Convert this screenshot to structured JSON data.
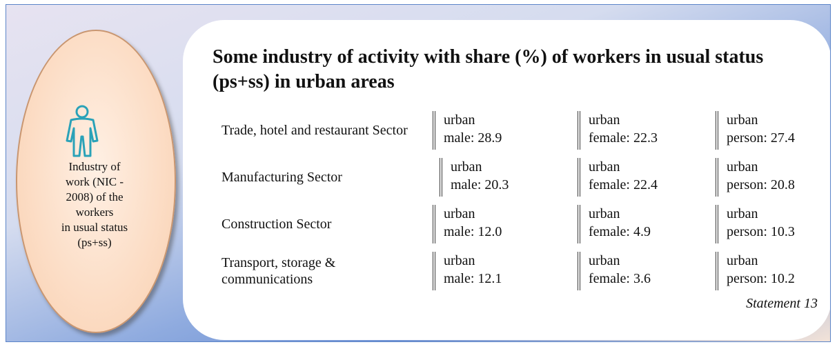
{
  "panel": {
    "lines": [
      "Industry of",
      "work (NIC -",
      "2008) of the",
      "workers",
      "in usual status",
      "(ps+ss)"
    ]
  },
  "title": "Some industry of activity with share (%) of workers in usual status (ps+ss) in urban areas",
  "table": {
    "rows": [
      {
        "label": "Trade, hotel and restaurant Sector",
        "cells": [
          [
            "urban",
            "male: 28.9"
          ],
          [
            "urban",
            "female: 22.3"
          ],
          [
            "urban",
            "person: 27.4"
          ]
        ]
      },
      {
        "label": "Manufacturing Sector",
        "cells": [
          [
            "urban",
            "male: 20.3"
          ],
          [
            "urban",
            "female: 22.4"
          ],
          [
            "urban",
            "person: 20.8"
          ]
        ]
      },
      {
        "label": "Construction Sector",
        "cells": [
          [
            "urban",
            "male: 12.0"
          ],
          [
            "urban",
            "female: 4.9"
          ],
          [
            "urban",
            "person: 10.3"
          ]
        ]
      },
      {
        "label": "Transport, storage & communications",
        "cells": [
          [
            "urban",
            "male: 12.1"
          ],
          [
            "urban",
            "female: 3.6"
          ],
          [
            "urban",
            "person: 10.2"
          ]
        ]
      }
    ]
  },
  "source": "Statement 13"
}
